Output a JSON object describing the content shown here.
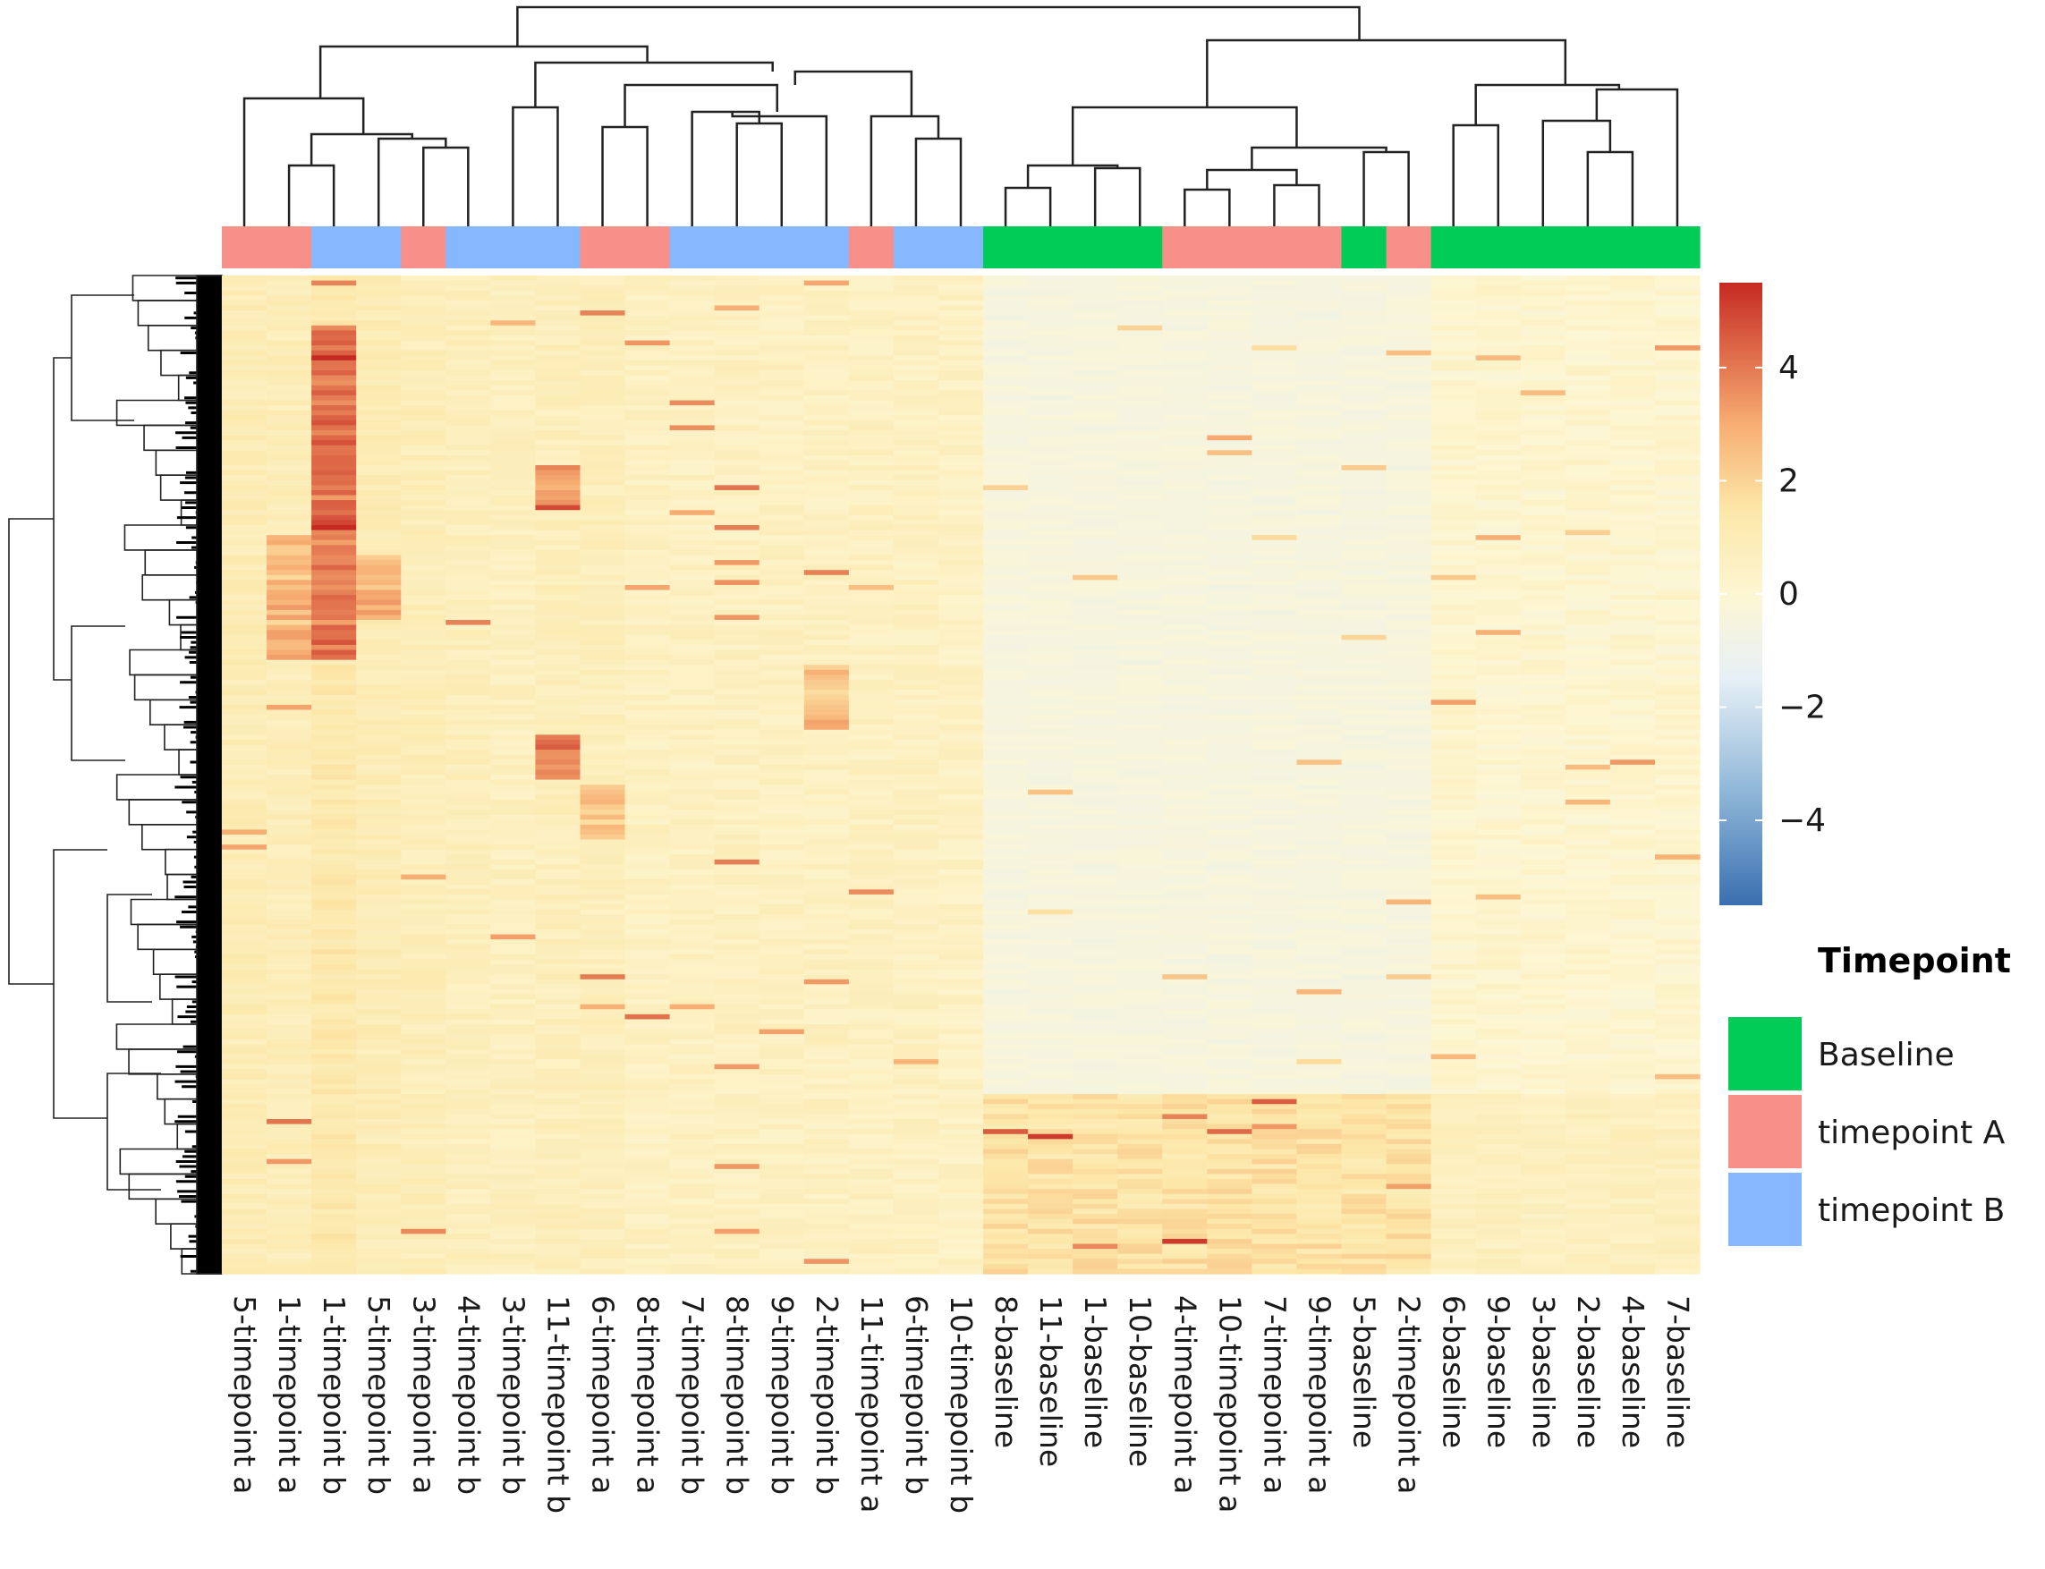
{
  "chart_data": {
    "type": "heatmap",
    "title": "",
    "columns": [
      "5-timepoint a",
      "1-timepoint a",
      "1-timepoint b",
      "5-timepoint b",
      "3-timepoint a",
      "4-timepoint b",
      "3-timepoint b",
      "11-timepoint b",
      "6-timepoint a",
      "8-timepoint a",
      "7-timepoint b",
      "8-timepoint b",
      "9-timepoint b",
      "2-timepoint b",
      "11-timepoint a",
      "6-timepoint b",
      "10-timepoint b",
      "8-baseline",
      "11-baseline",
      "1-baseline",
      "10-baseline",
      "4-timepoint a",
      "10-timepoint a",
      "7-timepoint a",
      "9-timepoint a",
      "5-baseline",
      "2-timepoint a",
      "6-baseline",
      "9-baseline",
      "3-baseline",
      "2-baseline",
      "4-baseline",
      "7-baseline"
    ],
    "column_groups": [
      "timepoint A",
      "timepoint A",
      "timepoint B",
      "timepoint B",
      "timepoint A",
      "timepoint B",
      "timepoint B",
      "timepoint B",
      "timepoint A",
      "timepoint A",
      "timepoint B",
      "timepoint B",
      "timepoint B",
      "timepoint B",
      "timepoint A",
      "timepoint B",
      "timepoint B",
      "Baseline",
      "Baseline",
      "Baseline",
      "Baseline",
      "timepoint A",
      "timepoint A",
      "timepoint A",
      "timepoint A",
      "Baseline",
      "timepoint A",
      "Baseline",
      "Baseline",
      "Baseline",
      "Baseline",
      "Baseline",
      "Baseline"
    ],
    "color_scale": {
      "min": -5.5,
      "max": 5.5,
      "ticks": [
        4,
        2,
        0,
        -2,
        -4
      ],
      "tick_labels": [
        "4",
        "2",
        "0",
        "−2",
        "−4"
      ],
      "stops": [
        {
          "value": -5.5,
          "color": "#3a6fb0"
        },
        {
          "value": -3.5,
          "color": "#8fb7d8"
        },
        {
          "value": -1.5,
          "color": "#e6f0f6"
        },
        {
          "value": 0,
          "color": "#fdf6d2"
        },
        {
          "value": 1.5,
          "color": "#fce7a8"
        },
        {
          "value": 3,
          "color": "#f7ad72"
        },
        {
          "value": 5.5,
          "color": "#c62a22"
        }
      ]
    },
    "legend": {
      "title": "Timepoint",
      "entries": [
        {
          "label": "Baseline",
          "color": "#00cc57"
        },
        {
          "label": "timepoint A",
          "color": "#f8908a"
        },
        {
          "label": "timepoint B",
          "color": "#86b7ff"
        }
      ]
    },
    "column_dendrogram": "hierarchical clustering of samples",
    "row_dendrogram": "hierarchical clustering of features"
  }
}
